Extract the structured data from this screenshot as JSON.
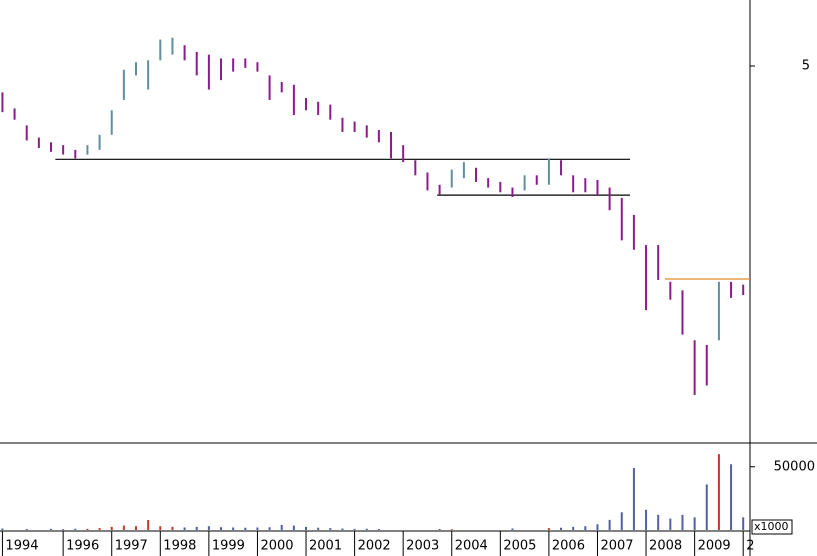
{
  "chart_data": {
    "type": "ohlc",
    "x": [
      1994.75,
      1995,
      1995.25,
      1995.5,
      1995.75,
      1996,
      1996.25,
      1996.5,
      1996.75,
      1997,
      1997.25,
      1997.5,
      1997.75,
      1998,
      1998.25,
      1998.5,
      1998.75,
      1999,
      1999.25,
      1999.5,
      1999.75,
      2000,
      2000.25,
      2000.5,
      2000.75,
      2001,
      2001.25,
      2001.5,
      2001.75,
      2002,
      2002.25,
      2002.5,
      2002.75,
      2003,
      2003.25,
      2003.5,
      2003.75,
      2004,
      2004.25,
      2004.5,
      2004.75,
      2005,
      2005.25,
      2005.5,
      2005.75,
      2006,
      2006.25,
      2006.5,
      2006.75,
      2007,
      2007.25,
      2007.5,
      2007.75,
      2008,
      2008.25,
      2008.5,
      2008.75,
      2009,
      2009.25,
      2009.5,
      2009.75,
      2010
    ],
    "high": [
      4.72,
      4.55,
      4.37,
      4.24,
      4.19,
      4.16,
      4.11,
      4.16,
      4.27,
      4.53,
      4.96,
      5.04,
      5.06,
      5.28,
      5.3,
      5.22,
      5.15,
      5.12,
      5.08,
      5.08,
      5.08,
      5.04,
      4.9,
      4.83,
      4.8,
      4.66,
      4.62,
      4.59,
      4.45,
      4.41,
      4.37,
      4.32,
      4.3,
      4.16,
      4.0,
      3.87,
      3.74,
      3.9,
      3.98,
      3.92,
      3.81,
      3.77,
      3.71,
      3.84,
      3.84,
      4.02,
      4.0,
      3.84,
      3.81,
      3.79,
      3.71,
      3.6,
      3.42,
      3.1,
      3.1,
      2.71,
      2.62,
      2.09,
      2.04,
      2.71,
      2.71,
      2.68
    ],
    "low": [
      4.51,
      4.43,
      4.21,
      4.13,
      4.09,
      4.06,
      4.02,
      4.06,
      4.11,
      4.27,
      4.64,
      4.9,
      4.75,
      5.06,
      5.12,
      5.06,
      4.9,
      4.75,
      4.85,
      4.94,
      4.98,
      4.94,
      4.64,
      4.72,
      4.48,
      4.53,
      4.48,
      4.43,
      4.3,
      4.3,
      4.24,
      4.19,
      4.02,
      3.98,
      3.84,
      3.68,
      3.63,
      3.71,
      3.81,
      3.77,
      3.71,
      3.66,
      3.61,
      3.68,
      3.74,
      3.74,
      3.84,
      3.66,
      3.66,
      3.63,
      3.47,
      3.15,
      3.05,
      2.41,
      2.73,
      2.52,
      2.15,
      1.51,
      1.61,
      2.09,
      2.54,
      2.57
    ],
    "volume": [
      1200,
      0,
      800,
      0,
      900,
      700,
      1000,
      900,
      1500,
      2500,
      3500,
      3000,
      7900,
      3000,
      2500,
      2000,
      2500,
      3000,
      2200,
      2000,
      1800,
      2000,
      2200,
      4000,
      3500,
      2500,
      1800,
      1500,
      1200,
      900,
      1000,
      800,
      0,
      0,
      0,
      0,
      800,
      600,
      0,
      0,
      0,
      0,
      1200,
      0,
      0,
      1500,
      1800,
      2500,
      3000,
      4500,
      8000,
      14000,
      49000,
      16000,
      12000,
      9000,
      12000,
      10000,
      36000,
      60000,
      52000,
      10000
    ],
    "up_color": "#5f8f9f",
    "down_color": "#8b1a8b",
    "volume_up_color": "#c0392b",
    "volume_down_color": "#5060a0",
    "xlim": [
      1994.7,
      2010.14
    ],
    "xticks": [
      {
        "value": 1994.75,
        "label": "1994"
      },
      1996,
      1997,
      1998,
      1999,
      2000,
      2001,
      2002,
      2003,
      2004,
      2005,
      2006,
      2007,
      2008,
      2009,
      {
        "value": 2010,
        "label": "2"
      }
    ],
    "ylim": [
      1.0,
      5.7
    ],
    "yticks": [
      5
    ],
    "volume_ylim": [
      0,
      68000
    ],
    "volume_yticks": [
      50000
    ],
    "volume_unit": "x1000",
    "levels": [
      {
        "value": 4.01,
        "x": [
          1995.84,
          2007.67
        ],
        "color": "#000000"
      },
      {
        "value": 3.63,
        "x": [
          2003.7,
          2007.67
        ],
        "color": "#000000"
      },
      {
        "value": 2.74,
        "x": [
          2008.39,
          2010.14
        ],
        "color": "#e08a2c"
      }
    ]
  }
}
